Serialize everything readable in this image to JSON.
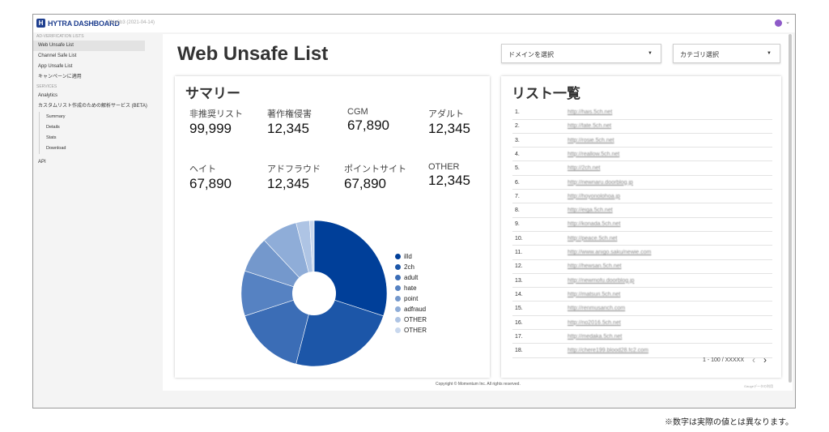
{
  "app": {
    "logo_text": "HYTRA DASHBOARD",
    "version": "7fda6b3 (2021-04-14)"
  },
  "sidebar": {
    "section_ad": "AD-VERIFICATION LISTS",
    "items_ad": [
      "Web Unsafe List",
      "Channel Safe List",
      "App Unsafe List",
      "キャンペーンに適用"
    ],
    "section_services": "SERVICES",
    "analytics": "Analytics",
    "custom": "カスタムリスト作成のための解析サービス (BETA)",
    "sub_items": [
      "Summary",
      "Details",
      "Stats",
      "Download"
    ],
    "api": "API"
  },
  "page": {
    "title": "Web Unsafe List",
    "domain_select": "ドメインを選択",
    "category_select": "カテゴリ選択"
  },
  "summary": {
    "title": "サマリー",
    "metrics": [
      {
        "label": "非推奨リスト",
        "value": "99,999"
      },
      {
        "label": "著作権侵害",
        "value": "12,345"
      },
      {
        "label": "CGM",
        "value": "67,890"
      },
      {
        "label": "アダルト",
        "value": "12,345"
      },
      {
        "label": "ヘイト",
        "value": "67,890"
      },
      {
        "label": "アドフラウド",
        "value": "12,345"
      },
      {
        "label": "ポイントサイト",
        "value": "67,890"
      },
      {
        "label": "OTHER",
        "value": "12,345"
      }
    ]
  },
  "chart_data": {
    "type": "pie",
    "donut": true,
    "labels": [
      "illd",
      "2ch",
      "adult",
      "hate",
      "point",
      "adfraud",
      "OTHER",
      "OTHER"
    ],
    "values": [
      30,
      24,
      16,
      10,
      8,
      8,
      3,
      1
    ],
    "colors": [
      "#003f99",
      "#1c56a8",
      "#3b6db6",
      "#5682c2",
      "#7498cc",
      "#8fadd8",
      "#aec4e4",
      "#c9d8ee"
    ],
    "legend_position": "right"
  },
  "list": {
    "title": "リスト一覧",
    "rows": [
      {
        "num": "1.",
        "url": "http://hais.5ch.net"
      },
      {
        "num": "2.",
        "url": "http://fate.5ch.net"
      },
      {
        "num": "3.",
        "url": "http://rosie.5ch.net"
      },
      {
        "num": "4.",
        "url": "http://reallow.5ch.net"
      },
      {
        "num": "5.",
        "url": "http://2ch.net"
      },
      {
        "num": "6.",
        "url": "http://newnaru.doorblog.jp"
      },
      {
        "num": "7.",
        "url": "http://hoyonolohoa.jp"
      },
      {
        "num": "8.",
        "url": "http://eiga.5ch.net"
      },
      {
        "num": "9.",
        "url": "http://konada.5ch.net"
      },
      {
        "num": "10.",
        "url": "http://peace.5ch.net"
      },
      {
        "num": "11.",
        "url": "http://www.anigo.saku/newie.com"
      },
      {
        "num": "12.",
        "url": "http://hewsan.5ch.net"
      },
      {
        "num": "13.",
        "url": "http://newmofu.doorblog.jp"
      },
      {
        "num": "14.",
        "url": "http://matsuri.5ch.net"
      },
      {
        "num": "15.",
        "url": "http://renmusanch.com"
      },
      {
        "num": "16.",
        "url": "http://no2016.5ch.net"
      },
      {
        "num": "17.",
        "url": "http://medaka.5ch.net"
      },
      {
        "num": "18.",
        "url": "http://chere199.blood28.fc2.com"
      }
    ],
    "pagination": "1 - 100 / XXXXX"
  },
  "footer": {
    "copyright": "Copyright © Momentum Inc. All rights reserved.",
    "right": "Gaugeデータの利用"
  },
  "note": "※数字は実際の値とは異なります。"
}
